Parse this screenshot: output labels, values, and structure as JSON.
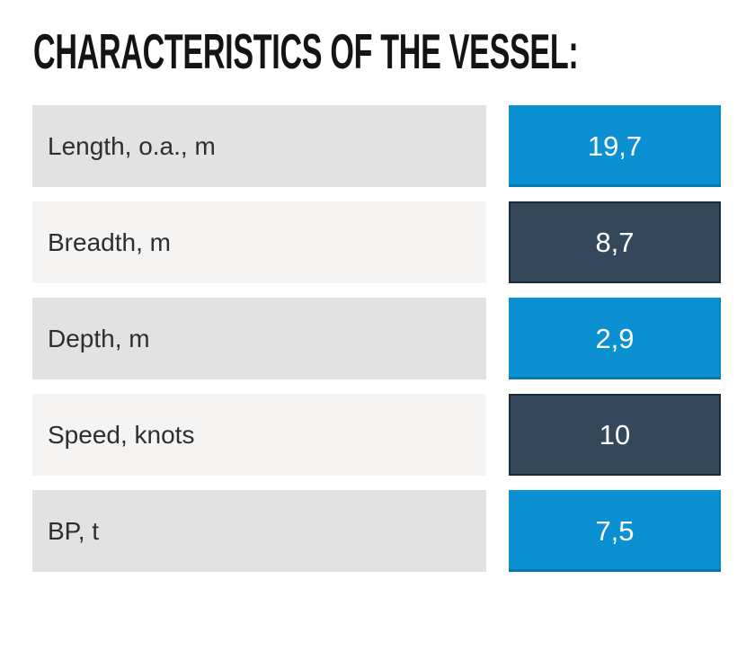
{
  "page": {
    "title": "CHARACTERISTICS OF THE VESSEL:"
  },
  "table": {
    "rows": [
      {
        "label": "Length, o.a., m",
        "value": "19,7",
        "label_shade": "gray",
        "value_variant": "blue"
      },
      {
        "label": "Breadth, m",
        "value": "8,7",
        "label_shade": "light",
        "value_variant": "dark"
      },
      {
        "label": "Depth, m",
        "value": "2,9",
        "label_shade": "gray",
        "value_variant": "blue"
      },
      {
        "label": "Speed, knots",
        "value": "10",
        "label_shade": "light",
        "value_variant": "dark"
      },
      {
        "label": "BP, t",
        "value": "7,5",
        "label_shade": "gray",
        "value_variant": "blue"
      }
    ]
  },
  "colors": {
    "accent_blue": "#0b90d1",
    "dark_slate": "#33495b",
    "label_bg_gray": "#e2e2e2",
    "label_bg_light": "#f5f4f2",
    "label_text": "#2e2e2e",
    "value_text": "#ffffff",
    "title_text": "#141414",
    "background": "#ffffff"
  },
  "chart_data": {
    "type": "table",
    "title": "CHARACTERISTICS OF THE VESSEL:",
    "rows": [
      [
        "Length, o.a., m",
        "19,7"
      ],
      [
        "Breadth, m",
        "8,7"
      ],
      [
        "Depth, m",
        "2,9"
      ],
      [
        "Speed, knots",
        "10"
      ],
      [
        "BP, t",
        "7,5"
      ]
    ],
    "row_value_colors": [
      "blue",
      "dark",
      "blue",
      "dark",
      "blue"
    ],
    "legend_position": "none",
    "grid": false
  }
}
